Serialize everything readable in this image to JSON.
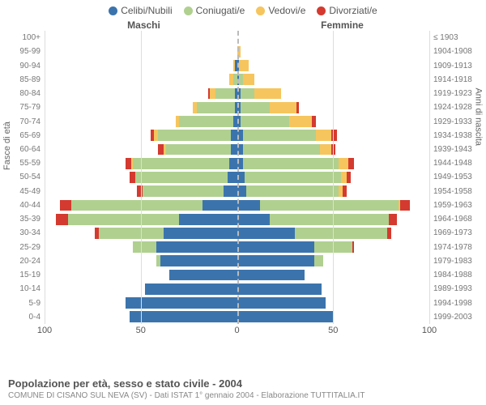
{
  "legend": [
    {
      "label": "Celibi/Nubili",
      "color": "#3b74ad"
    },
    {
      "label": "Coniugati/e",
      "color": "#b0d090"
    },
    {
      "label": "Vedovi/e",
      "color": "#f6c55e"
    },
    {
      "label": "Divorziati/e",
      "color": "#d43a2f"
    }
  ],
  "headers": {
    "male": "Maschi",
    "female": "Femmine"
  },
  "axis": {
    "x_ticks": [
      100,
      50,
      0,
      50,
      100
    ],
    "x_max": 100,
    "left_title": "Fasce di età",
    "right_title": "Anni di nascita"
  },
  "colors": {
    "celibi": "#3b74ad",
    "coniugati": "#b0d090",
    "vedovi": "#f6c55e",
    "divorziati": "#d43a2f",
    "grid": "#dddddd",
    "center": "#bbbbbb",
    "bg": "#ffffff"
  },
  "rows": [
    {
      "age": "100+",
      "birth": "≤ 1903",
      "m": [
        0,
        0,
        0,
        0
      ],
      "f": [
        0,
        0,
        0,
        0
      ]
    },
    {
      "age": "95-99",
      "birth": "1904-1908",
      "m": [
        0,
        0,
        0,
        0
      ],
      "f": [
        0,
        0,
        2,
        0
      ]
    },
    {
      "age": "90-94",
      "birth": "1909-1913",
      "m": [
        1,
        0,
        1,
        0
      ],
      "f": [
        1,
        0,
        5,
        0
      ]
    },
    {
      "age": "85-89",
      "birth": "1914-1918",
      "m": [
        0,
        2,
        2,
        0
      ],
      "f": [
        1,
        2,
        6,
        0
      ]
    },
    {
      "age": "80-84",
      "birth": "1919-1923",
      "m": [
        1,
        10,
        3,
        1
      ],
      "f": [
        2,
        7,
        14,
        0
      ]
    },
    {
      "age": "75-79",
      "birth": "1924-1928",
      "m": [
        1,
        20,
        2,
        0
      ],
      "f": [
        2,
        15,
        14,
        1
      ]
    },
    {
      "age": "70-74",
      "birth": "1929-1933",
      "m": [
        2,
        28,
        2,
        0
      ],
      "f": [
        2,
        25,
        12,
        2
      ]
    },
    {
      "age": "65-69",
      "birth": "1934-1938",
      "m": [
        3,
        38,
        2,
        2
      ],
      "f": [
        3,
        38,
        8,
        3
      ]
    },
    {
      "age": "60-64",
      "birth": "1939-1943",
      "m": [
        3,
        34,
        1,
        3
      ],
      "f": [
        3,
        40,
        6,
        2
      ]
    },
    {
      "age": "55-59",
      "birth": "1944-1948",
      "m": [
        4,
        50,
        1,
        3
      ],
      "f": [
        3,
        50,
        5,
        3
      ]
    },
    {
      "age": "50-54",
      "birth": "1949-1953",
      "m": [
        5,
        48,
        0,
        3
      ],
      "f": [
        4,
        50,
        3,
        2
      ]
    },
    {
      "age": "45-49",
      "birth": "1954-1958",
      "m": [
        7,
        42,
        0,
        3
      ],
      "f": [
        5,
        48,
        2,
        2
      ]
    },
    {
      "age": "40-44",
      "birth": "1959-1963",
      "m": [
        18,
        68,
        0,
        6
      ],
      "f": [
        12,
        72,
        1,
        5
      ]
    },
    {
      "age": "35-39",
      "birth": "1964-1968",
      "m": [
        30,
        58,
        0,
        6
      ],
      "f": [
        17,
        62,
        0,
        4
      ]
    },
    {
      "age": "30-34",
      "birth": "1969-1973",
      "m": [
        38,
        34,
        0,
        2
      ],
      "f": [
        30,
        48,
        0,
        2
      ]
    },
    {
      "age": "25-29",
      "birth": "1974-1978",
      "m": [
        42,
        12,
        0,
        0
      ],
      "f": [
        40,
        20,
        0,
        1
      ]
    },
    {
      "age": "20-24",
      "birth": "1979-1983",
      "m": [
        40,
        2,
        0,
        0
      ],
      "f": [
        40,
        5,
        0,
        0
      ]
    },
    {
      "age": "15-19",
      "birth": "1984-1988",
      "m": [
        35,
        0,
        0,
        0
      ],
      "f": [
        35,
        0,
        0,
        0
      ]
    },
    {
      "age": "10-14",
      "birth": "1989-1993",
      "m": [
        48,
        0,
        0,
        0
      ],
      "f": [
        44,
        0,
        0,
        0
      ]
    },
    {
      "age": "5-9",
      "birth": "1994-1998",
      "m": [
        58,
        0,
        0,
        0
      ],
      "f": [
        46,
        0,
        0,
        0
      ]
    },
    {
      "age": "0-4",
      "birth": "1999-2003",
      "m": [
        56,
        0,
        0,
        0
      ],
      "f": [
        50,
        0,
        0,
        0
      ]
    }
  ],
  "title": "Popolazione per età, sesso e stato civile - 2004",
  "subtitle": "COMUNE DI CISANO SUL NEVA (SV) - Dati ISTAT 1° gennaio 2004 - Elaborazione TUTTITALIA.IT"
}
